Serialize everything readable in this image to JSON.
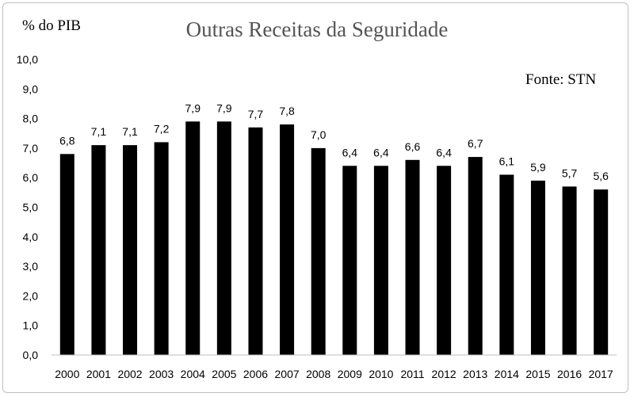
{
  "chart_data": {
    "type": "bar",
    "title": "Outras Receitas da Seguridade",
    "ylabel": "% do PIB",
    "xlabel": "",
    "source_note": "Fonte: STN",
    "categories": [
      "2000",
      "2001",
      "2002",
      "2003",
      "2004",
      "2005",
      "2006",
      "2007",
      "2008",
      "2009",
      "2010",
      "2011",
      "2012",
      "2013",
      "2014",
      "2015",
      "2016",
      "2017"
    ],
    "values": [
      6.8,
      7.1,
      7.1,
      7.2,
      7.9,
      7.9,
      7.7,
      7.8,
      7.0,
      6.4,
      6.4,
      6.6,
      6.4,
      6.7,
      6.1,
      5.9,
      5.7,
      5.6
    ],
    "value_labels": [
      "6,8",
      "7,1",
      "7,1",
      "7,2",
      "7,9",
      "7,9",
      "7,7",
      "7,8",
      "7,0",
      "6,4",
      "6,4",
      "6,6",
      "6,4",
      "6,7",
      "6,1",
      "5,9",
      "5,7",
      "5,6"
    ],
    "ylim": [
      0,
      10
    ],
    "yticks": [
      0,
      1,
      2,
      3,
      4,
      5,
      6,
      7,
      8,
      9,
      10
    ],
    "ytick_labels": [
      "0,0",
      "1,0",
      "2,0",
      "3,0",
      "4,0",
      "5,0",
      "6,0",
      "7,0",
      "8,0",
      "9,0",
      "10,0"
    ],
    "grid": false,
    "bar_color": "#000000",
    "axis_color": "#bfbfbf"
  }
}
